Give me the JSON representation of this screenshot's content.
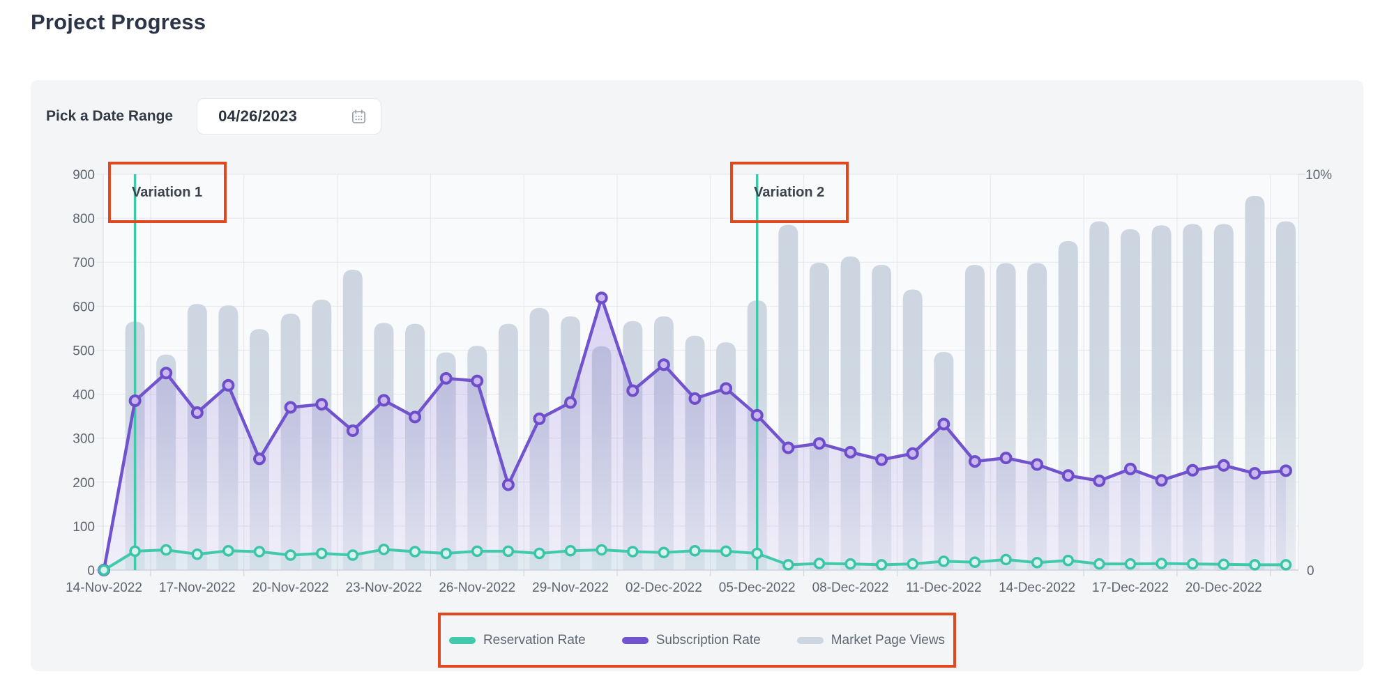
{
  "page": {
    "title": "Project Progress"
  },
  "filters": {
    "date_range_label": "Pick a Date Range",
    "date_value": "04/26/2023",
    "calendar_icon": "calendar-icon"
  },
  "colors": {
    "reservation_teal": "#41c9ab",
    "subscription_purple": "#7253ce",
    "bars_gray": "#ccd5e0",
    "annotation_red": "#e0481f",
    "variation_line_teal": "#3fc9ab"
  },
  "chart_data": {
    "type": "combo-bar-line",
    "x": [
      "14-Nov-2022",
      "15-Nov-2022",
      "16-Nov-2022",
      "17-Nov-2022",
      "18-Nov-2022",
      "19-Nov-2022",
      "20-Nov-2022",
      "21-Nov-2022",
      "22-Nov-2022",
      "23-Nov-2022",
      "24-Nov-2022",
      "25-Nov-2022",
      "26-Nov-2022",
      "27-Nov-2022",
      "28-Nov-2022",
      "29-Nov-2022",
      "30-Nov-2022",
      "01-Dec-2022",
      "02-Dec-2022",
      "03-Dec-2022",
      "04-Dec-2022",
      "05-Dec-2022",
      "06-Dec-2022",
      "07-Dec-2022",
      "08-Dec-2022",
      "09-Dec-2022",
      "10-Dec-2022",
      "11-Dec-2022",
      "12-Dec-2022",
      "13-Dec-2022",
      "14-Dec-2022",
      "15-Dec-2022",
      "16-Dec-2022",
      "17-Dec-2022",
      "18-Dec-2022",
      "19-Dec-2022",
      "20-Dec-2022",
      "21-Dec-2022",
      "22-Dec-2022"
    ],
    "x_tick_labels": [
      "14-Nov-2022",
      "17-Nov-2022",
      "20-Nov-2022",
      "23-Nov-2022",
      "26-Nov-2022",
      "29-Nov-2022",
      "02-Dec-2022",
      "05-Dec-2022",
      "08-Dec-2022",
      "11-Dec-2022",
      "14-Dec-2022",
      "17-Dec-2022",
      "20-Dec-2022"
    ],
    "series": [
      {
        "name": "Reservation Rate",
        "type": "line",
        "axis": "right",
        "color": "#41c9ab",
        "values": [
          0,
          43,
          46,
          36,
          44,
          42,
          34,
          38,
          34,
          47,
          42,
          38,
          43,
          43,
          38,
          44,
          46,
          42,
          40,
          44,
          43,
          38,
          12,
          15,
          14,
          12,
          14,
          20,
          18,
          24,
          17,
          22,
          14,
          14,
          15,
          14,
          13,
          12,
          12
        ],
        "values_pct": [
          0,
          0.48,
          0.51,
          0.4,
          0.49,
          0.47,
          0.38,
          0.42,
          0.38,
          0.52,
          0.47,
          0.42,
          0.48,
          0.48,
          0.42,
          0.49,
          0.51,
          0.47,
          0.44,
          0.49,
          0.48,
          0.42,
          0.13,
          0.17,
          0.16,
          0.13,
          0.16,
          0.22,
          0.2,
          0.27,
          0.19,
          0.24,
          0.16,
          0.16,
          0.17,
          0.16,
          0.14,
          0.13,
          0.13
        ]
      },
      {
        "name": "Subscription Rate",
        "type": "line",
        "axis": "right",
        "color": "#7253ce",
        "values": [
          0,
          385,
          448,
          358,
          420,
          253,
          370,
          377,
          317,
          386,
          348,
          436,
          430,
          194,
          344,
          381,
          619,
          408,
          467,
          390,
          413,
          352,
          278,
          288,
          268,
          251,
          265,
          332,
          247,
          255,
          240,
          215,
          203,
          230,
          204,
          227,
          238,
          220,
          226
        ],
        "values_pct": [
          0,
          4.28,
          4.98,
          3.98,
          4.67,
          2.81,
          4.11,
          4.19,
          3.52,
          4.29,
          3.87,
          4.84,
          4.78,
          2.16,
          3.82,
          4.23,
          6.88,
          4.53,
          5.19,
          4.33,
          4.59,
          3.91,
          3.09,
          3.2,
          2.98,
          2.79,
          2.94,
          3.69,
          2.74,
          2.83,
          2.67,
          2.39,
          2.26,
          2.56,
          2.27,
          2.52,
          2.64,
          2.44,
          2.51
        ]
      },
      {
        "name": "Market Page Views",
        "type": "bar",
        "axis": "left",
        "color": "#ccd5e0",
        "values": [
          null,
          565,
          490,
          605,
          602,
          548,
          583,
          615,
          683,
          562,
          560,
          495,
          510,
          560,
          596,
          577,
          509,
          566,
          577,
          533,
          518,
          613,
          785,
          699,
          713,
          694,
          638,
          496,
          694,
          698,
          698,
          748,
          793,
          775,
          784,
          787,
          787,
          851,
          793
        ]
      }
    ],
    "left_axis": {
      "min": 0,
      "max": 900,
      "tick_step": 100,
      "ticks": [
        900,
        800,
        700,
        600,
        500,
        400,
        300,
        200,
        100,
        0
      ]
    },
    "right_axis": {
      "min": 0,
      "max": 10,
      "top_label": "10%",
      "bottom_label": "0"
    },
    "annotations": [
      {
        "label": "Variation 1",
        "date": "15-Nov-2022"
      },
      {
        "label": "Variation 2",
        "date": "05-Dec-2022"
      }
    ],
    "legend_items": [
      {
        "label": "Reservation Rate",
        "color": "#41c9ab"
      },
      {
        "label": "Subscription Rate",
        "color": "#7253ce"
      },
      {
        "label": "Market Page Views",
        "color": "#ccd5e0"
      }
    ],
    "legend_position": "bottom",
    "grid": true
  }
}
